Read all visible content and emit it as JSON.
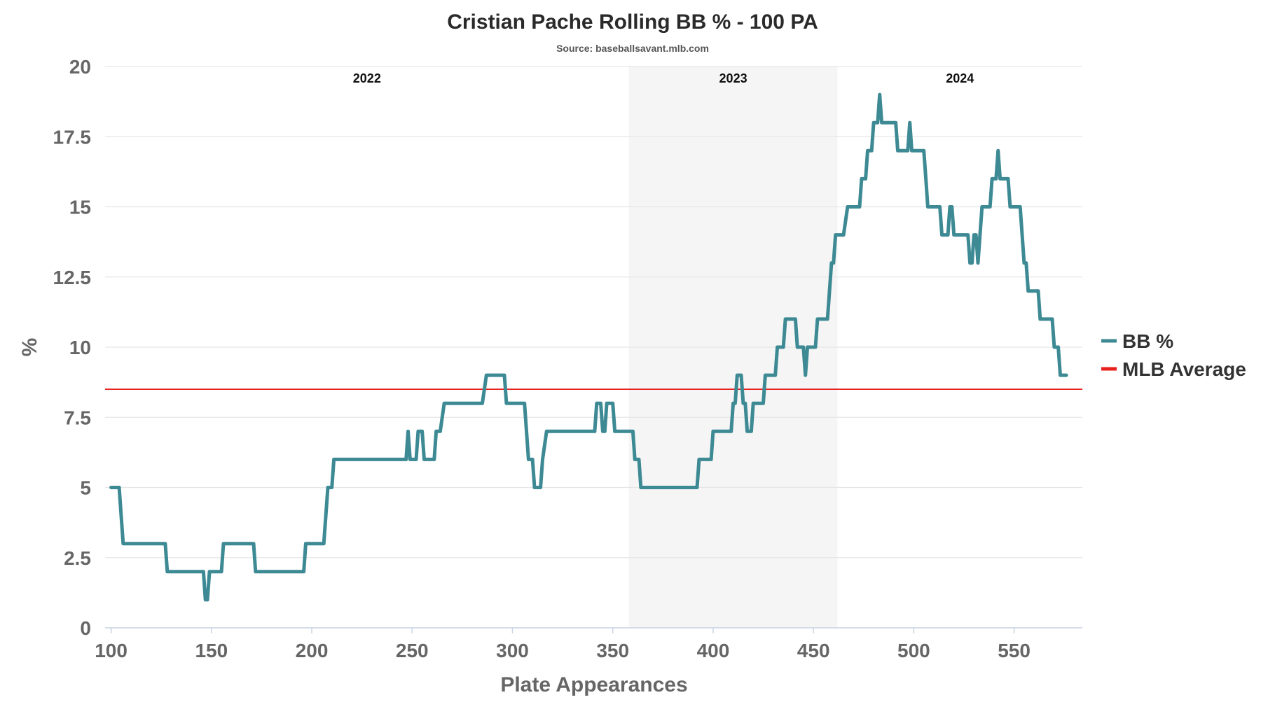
{
  "chart_data": {
    "type": "line",
    "title": "Cristian Pache Rolling BB % - 100 PA",
    "subtitle": "Source: baseballsavant.mlb.com",
    "xlabel": "Plate Appearances",
    "ylabel": "%",
    "xlim": [
      97,
      584
    ],
    "ylim": [
      0,
      20
    ],
    "x_ticks": [
      "100",
      "150",
      "200",
      "250",
      "300",
      "350",
      "400",
      "450",
      "500",
      "550"
    ],
    "y_ticks": [
      "0",
      "2.5",
      "5",
      "7.5",
      "10",
      "12.5",
      "15",
      "17.5",
      "20"
    ],
    "seasons": [
      {
        "label": "2022",
        "x_start": 97,
        "x_end": 358,
        "shaded": false
      },
      {
        "label": "2023",
        "x_start": 358,
        "x_end": 462,
        "shaded": true
      },
      {
        "label": "2024",
        "x_start": 462,
        "x_end": 584,
        "shaded": false
      }
    ],
    "colors": {
      "series": "#3d8a94",
      "reference": "#e8201c",
      "shade": "#f5f5f5",
      "grid": "#e6e6e6"
    },
    "reference_line": {
      "name": "MLB Average",
      "value": 8.5
    },
    "series": [
      {
        "name": "BB %",
        "points": [
          [
            100,
            5
          ],
          [
            104,
            5
          ],
          [
            106,
            3
          ],
          [
            127,
            3
          ],
          [
            128,
            2
          ],
          [
            146,
            2
          ],
          [
            147,
            1
          ],
          [
            148,
            1
          ],
          [
            149,
            2
          ],
          [
            155,
            2
          ],
          [
            156,
            3
          ],
          [
            171,
            3
          ],
          [
            172,
            2
          ],
          [
            196,
            2
          ],
          [
            197,
            3
          ],
          [
            206,
            3
          ],
          [
            208,
            5
          ],
          [
            210,
            5
          ],
          [
            211,
            6
          ],
          [
            247,
            6
          ],
          [
            248,
            7
          ],
          [
            249,
            6
          ],
          [
            252,
            6
          ],
          [
            253,
            7
          ],
          [
            255,
            7
          ],
          [
            256,
            6
          ],
          [
            261,
            6
          ],
          [
            262,
            7
          ],
          [
            264,
            7
          ],
          [
            266,
            8
          ],
          [
            285,
            8
          ],
          [
            287,
            9
          ],
          [
            296,
            9
          ],
          [
            297,
            8
          ],
          [
            306,
            8
          ],
          [
            308,
            6
          ],
          [
            310,
            6
          ],
          [
            311,
            5
          ],
          [
            314,
            5
          ],
          [
            315,
            6
          ],
          [
            317,
            7
          ],
          [
            341,
            7
          ],
          [
            342,
            8
          ],
          [
            344,
            8
          ],
          [
            345,
            7
          ],
          [
            346,
            7
          ],
          [
            347,
            8
          ],
          [
            350,
            8
          ],
          [
            351,
            7
          ],
          [
            360,
            7
          ],
          [
            361,
            6
          ],
          [
            363,
            6
          ],
          [
            364,
            5
          ],
          [
            392,
            5
          ],
          [
            393,
            6
          ],
          [
            399,
            6
          ],
          [
            400,
            7
          ],
          [
            409,
            7
          ],
          [
            410,
            8
          ],
          [
            411,
            8
          ],
          [
            412,
            9
          ],
          [
            414,
            9
          ],
          [
            415,
            8
          ],
          [
            416,
            8
          ],
          [
            417,
            7
          ],
          [
            419,
            7
          ],
          [
            420,
            8
          ],
          [
            425,
            8
          ],
          [
            426,
            9
          ],
          [
            431,
            9
          ],
          [
            432,
            10
          ],
          [
            435,
            10
          ],
          [
            436,
            11
          ],
          [
            441,
            11
          ],
          [
            442,
            10
          ],
          [
            445,
            10
          ],
          [
            446,
            9
          ],
          [
            447,
            10
          ],
          [
            451,
            10
          ],
          [
            452,
            11
          ],
          [
            457,
            11
          ],
          [
            459,
            13
          ],
          [
            460,
            13
          ],
          [
            461,
            14
          ],
          [
            465,
            14
          ],
          [
            467,
            15
          ],
          [
            473,
            15
          ],
          [
            474,
            16
          ],
          [
            476,
            16
          ],
          [
            477,
            17
          ],
          [
            479,
            17
          ],
          [
            480,
            18
          ],
          [
            482,
            18
          ],
          [
            483,
            19
          ],
          [
            484,
            18
          ],
          [
            491,
            18
          ],
          [
            492,
            17
          ],
          [
            497,
            17
          ],
          [
            498,
            18
          ],
          [
            499,
            17
          ],
          [
            505,
            17
          ],
          [
            506,
            16
          ],
          [
            507,
            15
          ],
          [
            513,
            15
          ],
          [
            514,
            14
          ],
          [
            517,
            14
          ],
          [
            518,
            15
          ],
          [
            519,
            15
          ],
          [
            520,
            14
          ],
          [
            527,
            14
          ],
          [
            528,
            13
          ],
          [
            529,
            13
          ],
          [
            530,
            14
          ],
          [
            531,
            14
          ],
          [
            532,
            13
          ],
          [
            534,
            15
          ],
          [
            538,
            15
          ],
          [
            539,
            16
          ],
          [
            541,
            16
          ],
          [
            542,
            17
          ],
          [
            543,
            16
          ],
          [
            547,
            16
          ],
          [
            548,
            15
          ],
          [
            553,
            15
          ],
          [
            555,
            13
          ],
          [
            556,
            13
          ],
          [
            557,
            12
          ],
          [
            562,
            12
          ],
          [
            563,
            11
          ],
          [
            569,
            11
          ],
          [
            570,
            10
          ],
          [
            572,
            10
          ],
          [
            573,
            9
          ],
          [
            576,
            9
          ]
        ]
      }
    ],
    "legend": [
      {
        "label": "BB %",
        "color": "#3d8a94"
      },
      {
        "label": "MLB Average",
        "color": "#e8201c"
      }
    ],
    "legend_position": "right"
  }
}
